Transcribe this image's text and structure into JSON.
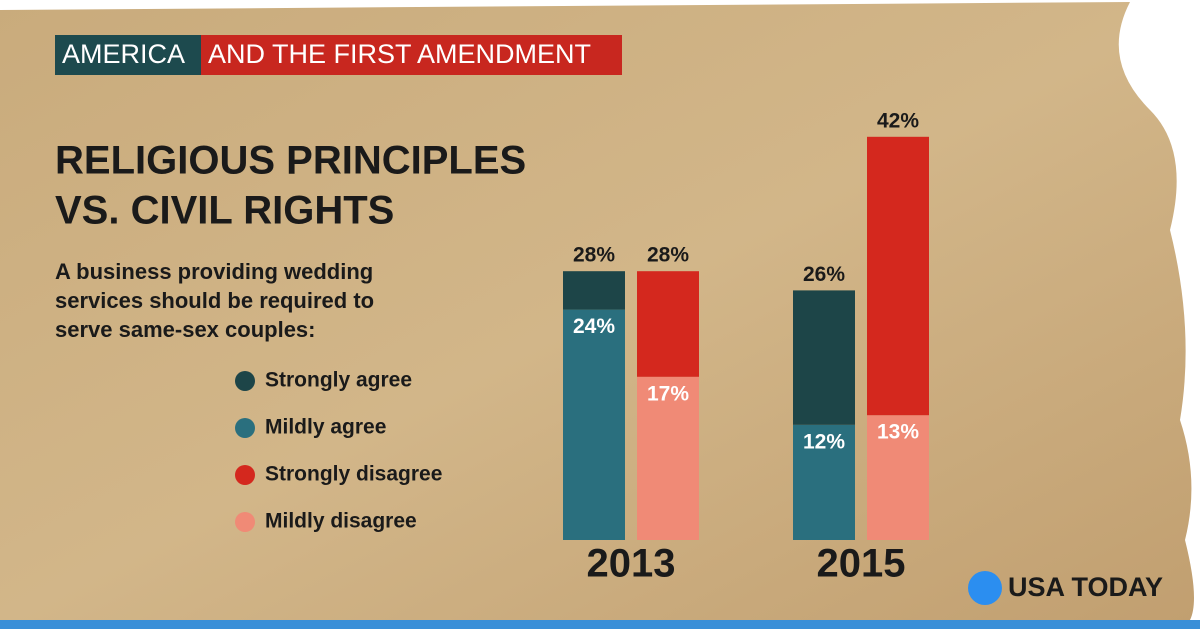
{
  "chart_data": {
    "type": "stacked-bar",
    "header": {
      "left": "AMERICA",
      "right": "AND THE FIRST AMENDMENT"
    },
    "title": [
      "RELIGIOUS PRINCIPLES",
      "VS. CIVIL RIGHTS"
    ],
    "subtitle": [
      "A business providing wedding",
      "services should be required to",
      "serve same-sex couples:"
    ],
    "categories": [
      "2013",
      "2015"
    ],
    "series": [
      {
        "name": "Strongly agree",
        "color": "#1d4548",
        "group": "agree",
        "values": [
          4,
          14
        ]
      },
      {
        "name": "Mildly agree",
        "color": "#2a6f7e",
        "group": "agree",
        "values": [
          24,
          12
        ],
        "value_labels": [
          "24%",
          "12%"
        ]
      },
      {
        "name": "Strongly disagree",
        "color": "#d4281e",
        "group": "disagree",
        "values": [
          11,
          29
        ]
      },
      {
        "name": "Mildly disagree",
        "color": "#f08a76",
        "group": "disagree",
        "values": [
          17,
          13
        ],
        "value_labels": [
          "17%",
          "13%"
        ]
      }
    ],
    "totals": {
      "agree": {
        "values": [
          28,
          26
        ],
        "value_labels": [
          "28%",
          "26%"
        ]
      },
      "disagree": {
        "values": [
          28,
          42
        ],
        "value_labels": [
          "28%",
          "42%"
        ]
      }
    },
    "source": "USA TODAY"
  }
}
